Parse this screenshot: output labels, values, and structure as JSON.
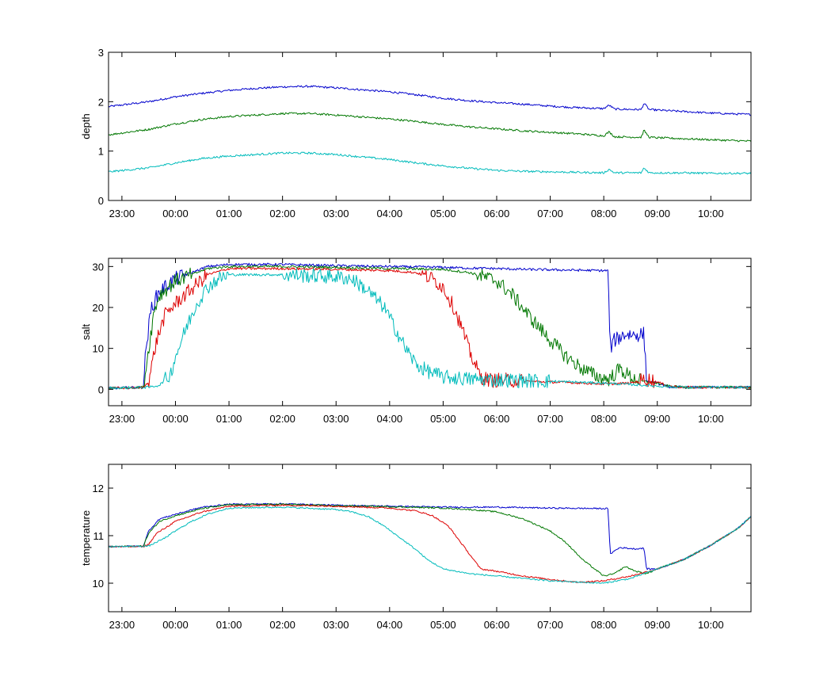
{
  "chart_data": [
    {
      "type": "line",
      "ylabel": "depth",
      "ylim": [
        0,
        3
      ],
      "yticks": [
        0,
        1,
        2,
        3
      ],
      "xlim": [
        -1.25,
        10.75
      ],
      "xticks": [
        -1,
        0,
        1,
        2,
        3,
        4,
        5,
        6,
        7,
        8,
        9,
        10
      ],
      "xtick_labels": [
        "23:00",
        "00:00",
        "01:00",
        "02:00",
        "03:00",
        "04:00",
        "05:00",
        "06:00",
        "07:00",
        "08:00",
        "09:00",
        "10:00"
      ],
      "x_unit": "hours after midnight",
      "noise": 0.02,
      "series": [
        {
          "color": "#0000cc",
          "x": [
            -1.25,
            -0.5,
            0,
            0.5,
            1,
            1.5,
            2,
            2.5,
            3,
            3.5,
            4,
            4.5,
            5,
            5.5,
            6,
            6.5,
            7,
            7.5,
            8,
            8.1,
            8.2,
            8.7,
            8.75,
            8.85,
            9,
            9.5,
            10,
            10.5,
            10.75
          ],
          "y": [
            1.9,
            2.0,
            2.1,
            2.17,
            2.23,
            2.27,
            2.3,
            2.31,
            2.28,
            2.24,
            2.2,
            2.14,
            2.07,
            2.02,
            1.98,
            1.95,
            1.91,
            1.88,
            1.86,
            1.93,
            1.85,
            1.84,
            1.97,
            1.84,
            1.83,
            1.8,
            1.77,
            1.75,
            1.74
          ]
        },
        {
          "color": "#007700",
          "x": [
            -1.25,
            -0.5,
            0,
            0.5,
            1,
            1.5,
            2,
            2.5,
            3,
            3.5,
            4,
            4.5,
            5,
            5.5,
            6,
            6.5,
            7,
            7.5,
            8,
            8.1,
            8.2,
            8.7,
            8.75,
            8.85,
            9,
            9.5,
            10,
            10.5,
            10.75
          ],
          "y": [
            1.33,
            1.44,
            1.55,
            1.64,
            1.7,
            1.73,
            1.76,
            1.76,
            1.73,
            1.69,
            1.65,
            1.6,
            1.54,
            1.49,
            1.45,
            1.41,
            1.38,
            1.35,
            1.31,
            1.39,
            1.29,
            1.28,
            1.42,
            1.28,
            1.27,
            1.25,
            1.23,
            1.21,
            1.2
          ]
        },
        {
          "color": "#00bbbb",
          "x": [
            -1.25,
            -0.5,
            0,
            0.5,
            1,
            1.5,
            2,
            2.5,
            3,
            3.5,
            4,
            4.5,
            5,
            5.5,
            6,
            6.5,
            7,
            7.5,
            8,
            8.1,
            8.2,
            8.7,
            8.75,
            8.85,
            9,
            9.5,
            10,
            10.5,
            10.75
          ],
          "y": [
            0.58,
            0.66,
            0.76,
            0.85,
            0.9,
            0.93,
            0.96,
            0.96,
            0.93,
            0.88,
            0.83,
            0.76,
            0.7,
            0.65,
            0.61,
            0.59,
            0.58,
            0.57,
            0.56,
            0.63,
            0.56,
            0.56,
            0.66,
            0.56,
            0.56,
            0.56,
            0.55,
            0.55,
            0.55
          ]
        }
      ]
    },
    {
      "type": "line",
      "ylabel": "salt",
      "ylim": [
        -4,
        32
      ],
      "yticks": [
        0,
        10,
        20,
        30
      ],
      "xlim": [
        -1.25,
        10.75
      ],
      "xticks": [
        -1,
        0,
        1,
        2,
        3,
        4,
        5,
        6,
        7,
        8,
        9,
        10
      ],
      "xtick_labels": [
        "23:00",
        "00:00",
        "01:00",
        "02:00",
        "03:00",
        "04:00",
        "05:00",
        "06:00",
        "07:00",
        "08:00",
        "09:00",
        "10:00"
      ],
      "x_unit": "hours after midnight",
      "noise": 0.3,
      "series": [
        {
          "color": "#0000cc",
          "x": [
            -1.25,
            -0.6,
            -0.55,
            -0.45,
            -0.3,
            0,
            0.3,
            0.6,
            1,
            2,
            3,
            4,
            5,
            5.5,
            6,
            6.5,
            7,
            7.5,
            8,
            8.08,
            8.12,
            8.2,
            8.4,
            8.6,
            8.7,
            8.75,
            8.8,
            9,
            9.2,
            9.5,
            10,
            10.75
          ],
          "y": [
            0.3,
            0.5,
            10,
            20,
            24,
            27,
            28.5,
            30,
            30.5,
            30.5,
            30.2,
            30,
            29.8,
            29.6,
            29.5,
            29.3,
            29.2,
            29.1,
            29,
            29,
            10,
            12,
            13.5,
            13.3,
            13.5,
            13.5,
            2,
            1.5,
            0.6,
            0.5,
            0.5,
            0.5
          ]
        },
        {
          "color": "#007700",
          "x": [
            -1.25,
            -0.6,
            -0.5,
            -0.4,
            -0.3,
            0,
            0.3,
            0.6,
            1,
            2,
            3,
            4,
            5,
            5.5,
            6,
            6.3,
            6.6,
            7,
            7.3,
            7.6,
            7.9,
            8.1,
            8.3,
            8.5,
            8.7,
            9,
            9.2,
            9.5,
            10,
            10.75
          ],
          "y": [
            0.3,
            0.5,
            10,
            19,
            23,
            26.5,
            28,
            29.5,
            30,
            30,
            29.8,
            29.5,
            29.3,
            28.5,
            26.5,
            23,
            18,
            12,
            8,
            5,
            3,
            2.5,
            5,
            3,
            2,
            1.5,
            0.8,
            0.5,
            0.5,
            0.5
          ]
        },
        {
          "color": "#dd0000",
          "x": [
            -1.25,
            -0.6,
            -0.5,
            -0.35,
            -0.2,
            0,
            0.3,
            0.6,
            1,
            2,
            3,
            4,
            4.5,
            4.8,
            5,
            5.2,
            5.35,
            5.5,
            5.7,
            5.9,
            6.1,
            6.5,
            7,
            7.5,
            8,
            8.5,
            8.8,
            9,
            9.2,
            9.5,
            10,
            10.75
          ],
          "y": [
            0.3,
            0.4,
            2,
            12,
            18,
            21,
            24.5,
            28,
            29.5,
            29.5,
            29.3,
            29,
            28.5,
            27,
            25,
            20,
            15,
            9,
            3,
            2.2,
            2.3,
            2,
            1.8,
            1.6,
            1.3,
            1.5,
            2.5,
            1.8,
            0.8,
            0.5,
            0.5,
            0.5
          ]
        },
        {
          "color": "#00bbbb",
          "x": [
            -1.25,
            -0.5,
            -0.3,
            -0.1,
            0,
            0.2,
            0.4,
            0.6,
            0.8,
            1,
            2,
            3,
            3.3,
            3.6,
            3.9,
            4.1,
            4.3,
            4.5,
            4.7,
            5,
            5.5,
            6,
            7,
            8,
            8.5,
            9,
            9.5,
            10,
            10.75
          ],
          "y": [
            0.3,
            0.5,
            1,
            3.5,
            8,
            15,
            21,
            25,
            27,
            28,
            28,
            27.5,
            27,
            24,
            20,
            15,
            10,
            6,
            4.5,
            3,
            2.5,
            2.3,
            2,
            1.5,
            1.2,
            0.8,
            0.5,
            0.5,
            0.5
          ]
        }
      ]
    },
    {
      "type": "line",
      "ylabel": "temperature",
      "ylim": [
        9.4,
        12.5
      ],
      "yticks": [
        10,
        11,
        12
      ],
      "xlim": [
        -1.25,
        10.75
      ],
      "xticks": [
        -1,
        0,
        1,
        2,
        3,
        4,
        5,
        6,
        7,
        8,
        9,
        10
      ],
      "xtick_labels": [
        "23:00",
        "00:00",
        "01:00",
        "02:00",
        "03:00",
        "04:00",
        "05:00",
        "06:00",
        "07:00",
        "08:00",
        "09:00",
        "10:00"
      ],
      "x_unit": "hours after midnight",
      "noise": 0.015,
      "series": [
        {
          "color": "#0000cc",
          "x": [
            -1.25,
            -0.6,
            -0.5,
            -0.3,
            0,
            0.5,
            1,
            2,
            3,
            4,
            5,
            6,
            7,
            8,
            8.08,
            8.12,
            8.3,
            8.6,
            8.75,
            8.8,
            9,
            9.5,
            10,
            10.5,
            10.75
          ],
          "y": [
            10.77,
            10.78,
            11.1,
            11.35,
            11.45,
            11.6,
            11.66,
            11.67,
            11.64,
            11.62,
            11.6,
            11.6,
            11.58,
            11.57,
            11.57,
            10.62,
            10.75,
            10.72,
            10.74,
            10.3,
            10.3,
            10.5,
            10.8,
            11.15,
            11.4
          ]
        },
        {
          "color": "#007700",
          "x": [
            -1.25,
            -0.6,
            -0.5,
            -0.3,
            0,
            0.5,
            1,
            2,
            3,
            4,
            5,
            5.5,
            6,
            6.5,
            7,
            7.3,
            7.6,
            8,
            8.2,
            8.4,
            8.6,
            8.8,
            9,
            9.5,
            10,
            10.5,
            10.75
          ],
          "y": [
            10.77,
            10.78,
            11.05,
            11.3,
            11.42,
            11.57,
            11.65,
            11.66,
            11.63,
            11.61,
            11.58,
            11.55,
            11.5,
            11.35,
            11.1,
            10.85,
            10.5,
            10.15,
            10.2,
            10.35,
            10.25,
            10.2,
            10.3,
            10.5,
            10.8,
            11.15,
            11.4
          ]
        },
        {
          "color": "#dd0000",
          "x": [
            -1.25,
            -0.6,
            -0.5,
            -0.35,
            0,
            0.5,
            1,
            2,
            3,
            4,
            4.5,
            4.8,
            5.1,
            5.3,
            5.5,
            5.7,
            6,
            6.5,
            7,
            7.5,
            8,
            8.5,
            9,
            9.5,
            10,
            10.5,
            10.75
          ],
          "y": [
            10.77,
            10.77,
            10.82,
            11.05,
            11.3,
            11.5,
            11.62,
            11.64,
            11.62,
            11.58,
            11.52,
            11.42,
            11.2,
            10.9,
            10.6,
            10.3,
            10.25,
            10.15,
            10.08,
            10.02,
            10.05,
            10.15,
            10.3,
            10.5,
            10.8,
            11.15,
            11.4
          ]
        },
        {
          "color": "#00bbbb",
          "x": [
            -1.25,
            -0.5,
            -0.2,
            0,
            0.3,
            0.6,
            1,
            2,
            3,
            3.3,
            3.6,
            3.9,
            4.2,
            4.5,
            4.7,
            5,
            5.5,
            6,
            7,
            8,
            8.5,
            9,
            9.5,
            10,
            10.5,
            10.75
          ],
          "y": [
            10.77,
            10.78,
            10.95,
            11.1,
            11.3,
            11.45,
            11.58,
            11.6,
            11.55,
            11.5,
            11.4,
            11.2,
            10.95,
            10.7,
            10.5,
            10.3,
            10.2,
            10.15,
            10.05,
            10.0,
            10.1,
            10.3,
            10.5,
            10.8,
            11.15,
            11.4
          ]
        }
      ]
    }
  ]
}
